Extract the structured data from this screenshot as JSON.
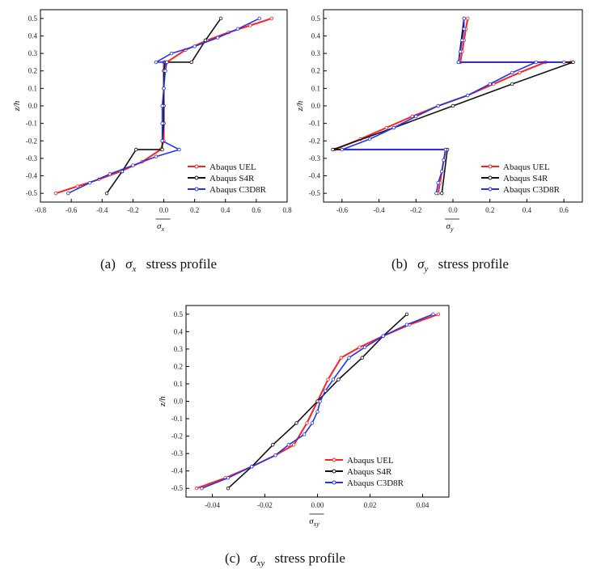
{
  "colors": {
    "uel": "#ff2020",
    "s4r": "#111111",
    "c3d8r": "#2233ee"
  },
  "chart_data": [
    {
      "id": "a",
      "type": "line",
      "ylabel": "z/h",
      "xlabel_symbol": "σ",
      "xlabel_sub": "x",
      "xlim": [
        -0.8,
        0.8
      ],
      "ylim": [
        -0.55,
        0.55
      ],
      "xticks": [
        "-0.8",
        "-0.6",
        "-0.4",
        "-0.2",
        "0.0",
        "0.2",
        "0.4",
        "0.6",
        "0.8"
      ],
      "xtick_values": [
        -0.8,
        -0.6,
        -0.4,
        -0.2,
        0.0,
        0.2,
        0.4,
        0.6,
        0.8
      ],
      "yticks": [
        "0.5",
        "0.4",
        "0.3",
        "0.2",
        "0.1",
        "0.0",
        "-0.1",
        "-0.2",
        "-0.3",
        "-0.4",
        "-0.5"
      ],
      "ytick_values": [
        0.5,
        0.4,
        0.3,
        0.2,
        0.1,
        0.0,
        -0.1,
        -0.2,
        -0.3,
        -0.4,
        -0.5
      ],
      "legend": [
        "Abaqus UEL",
        "Abaqus S4R",
        "Abaqus C3D8R"
      ],
      "legend_position": "bottom-right",
      "series": [
        {
          "name": "Abaqus UEL",
          "color": "uel",
          "x": [
            -0.7,
            -0.56,
            -0.42,
            -0.28,
            -0.14,
            -0.02,
            0.0,
            0.0,
            0.0,
            0.0,
            0.0,
            0.0,
            0.0,
            0.02,
            0.14,
            0.28,
            0.42,
            0.56,
            0.7
          ],
          "y": [
            -0.5,
            -0.46,
            -0.42,
            -0.375,
            -0.32,
            -0.25,
            -0.2,
            -0.1,
            0.0,
            0.1,
            0.2,
            0.25,
            0.25,
            0.25,
            0.32,
            0.375,
            0.42,
            0.46,
            0.5
          ]
        },
        {
          "name": "Abaqus S4R",
          "color": "s4r",
          "x": [
            -0.37,
            -0.27,
            -0.18,
            -0.01,
            -0.01,
            0.0,
            0.0,
            0.0,
            0.0,
            0.01,
            0.18,
            0.27,
            0.37
          ],
          "y": [
            -0.5,
            -0.375,
            -0.25,
            -0.25,
            -0.2,
            -0.1,
            0.0,
            0.1,
            0.2,
            0.25,
            0.25,
            0.375,
            0.5
          ]
        },
        {
          "name": "Abaqus C3D8R",
          "color": "c3d8r",
          "x": [
            -0.62,
            -0.48,
            -0.35,
            -0.2,
            -0.05,
            0.1,
            -0.01,
            -0.01,
            -0.01,
            0.0,
            0.01,
            0.02,
            -0.05,
            0.05,
            0.2,
            0.35,
            0.48,
            0.62
          ],
          "y": [
            -0.5,
            -0.44,
            -0.39,
            -0.34,
            -0.29,
            -0.25,
            -0.2,
            -0.1,
            0.0,
            0.1,
            0.2,
            0.25,
            0.25,
            0.3,
            0.34,
            0.39,
            0.44,
            0.5
          ]
        }
      ]
    },
    {
      "id": "b",
      "type": "line",
      "ylabel": "z/h",
      "xlabel_symbol": "σ",
      "xlabel_sub": "y",
      "xlim": [
        -0.7,
        0.7
      ],
      "ylim": [
        -0.55,
        0.55
      ],
      "xticks": [
        "-0.6",
        "-0.4",
        "-0.2",
        "0.0",
        "0.2",
        "0.4",
        "0.6"
      ],
      "xtick_values": [
        -0.6,
        -0.4,
        -0.2,
        0.0,
        0.2,
        0.4,
        0.6
      ],
      "yticks": [
        "0.5",
        "0.4",
        "0.3",
        "0.2",
        "0.1",
        "0.0",
        "-0.1",
        "-0.2",
        "-0.3",
        "-0.4",
        "-0.5"
      ],
      "ytick_values": [
        0.5,
        0.4,
        0.3,
        0.2,
        0.1,
        0.0,
        -0.1,
        -0.2,
        -0.3,
        -0.4,
        -0.5
      ],
      "legend": [
        "Abaqus UEL",
        "Abaqus S4R",
        "Abaqus C3D8R"
      ],
      "legend_position": "bottom-right",
      "series": [
        {
          "name": "Abaqus UEL",
          "color": "uel",
          "x": [
            -0.08,
            -0.07,
            -0.06,
            -0.05,
            -0.04,
            -0.64,
            -0.5,
            -0.36,
            -0.22,
            -0.08,
            0.08,
            0.22,
            0.36,
            0.5,
            0.64,
            0.04,
            0.05,
            0.06,
            0.07,
            0.08
          ],
          "y": [
            -0.5,
            -0.44,
            -0.375,
            -0.31,
            -0.25,
            -0.25,
            -0.19,
            -0.125,
            -0.06,
            0.0,
            0.06,
            0.125,
            0.19,
            0.25,
            0.25,
            0.25,
            0.31,
            0.375,
            0.44,
            0.5
          ]
        },
        {
          "name": "Abaqus S4R",
          "color": "s4r",
          "x": [
            -0.06,
            -0.03,
            -0.65,
            -0.32,
            0.0,
            0.32,
            0.65,
            0.03,
            0.06
          ],
          "y": [
            -0.5,
            -0.25,
            -0.25,
            -0.125,
            0.0,
            0.125,
            0.25,
            0.25,
            0.5
          ]
        },
        {
          "name": "Abaqus C3D8R",
          "color": "c3d8r",
          "x": [
            -0.09,
            -0.08,
            -0.06,
            -0.05,
            -0.04,
            -0.6,
            -0.45,
            -0.32,
            -0.2,
            -0.08,
            0.08,
            0.2,
            0.32,
            0.45,
            0.6,
            0.03,
            0.04,
            0.05,
            0.06,
            0.06
          ],
          "y": [
            -0.5,
            -0.44,
            -0.375,
            -0.31,
            -0.25,
            -0.25,
            -0.19,
            -0.125,
            -0.06,
            0.0,
            0.06,
            0.125,
            0.19,
            0.25,
            0.25,
            0.25,
            0.31,
            0.375,
            0.44,
            0.5
          ]
        }
      ]
    },
    {
      "id": "c",
      "type": "line",
      "ylabel": "z/h",
      "xlabel_symbol": "σ",
      "xlabel_sub": "xy",
      "xlim": [
        -0.05,
        0.05
      ],
      "ylim": [
        -0.55,
        0.55
      ],
      "xticks": [
        "-0.04",
        "-0.02",
        "0.00",
        "0.02",
        "0.04"
      ],
      "xtick_values": [
        -0.04,
        -0.02,
        0.0,
        0.02,
        0.04
      ],
      "yticks": [
        "0.5",
        "0.4",
        "0.3",
        "0.2",
        "0.1",
        "0.0",
        "-0.1",
        "-0.2",
        "-0.3",
        "-0.4",
        "-0.5"
      ],
      "ytick_values": [
        0.5,
        0.4,
        0.3,
        0.2,
        0.1,
        0.0,
        -0.1,
        -0.2,
        -0.3,
        -0.4,
        -0.5
      ],
      "legend": [
        "Abaqus UEL",
        "Abaqus S4R",
        "Abaqus C3D8R"
      ],
      "legend_position": "bottom-right",
      "series": [
        {
          "name": "Abaqus UEL",
          "color": "uel",
          "x": [
            -0.046,
            -0.035,
            -0.025,
            -0.016,
            -0.009,
            -0.004,
            0.0,
            0.004,
            0.009,
            0.016,
            0.025,
            0.035,
            0.046
          ],
          "y": [
            -0.5,
            -0.44,
            -0.375,
            -0.31,
            -0.25,
            -0.125,
            0.0,
            0.125,
            0.25,
            0.31,
            0.375,
            0.44,
            0.5
          ]
        },
        {
          "name": "Abaqus S4R",
          "color": "s4r",
          "x": [
            -0.034,
            -0.025,
            -0.017,
            -0.008,
            0.0,
            0.008,
            0.017,
            0.025,
            0.034
          ],
          "y": [
            -0.5,
            -0.375,
            -0.25,
            -0.125,
            0.0,
            0.125,
            0.25,
            0.375,
            0.5
          ]
        },
        {
          "name": "Abaqus C3D8R",
          "color": "c3d8r",
          "x": [
            -0.044,
            -0.034,
            -0.025,
            -0.016,
            -0.011,
            -0.005,
            -0.002,
            0.0,
            0.001,
            0.003,
            0.006,
            0.012,
            0.018,
            0.025,
            0.034,
            0.044
          ],
          "y": [
            -0.5,
            -0.44,
            -0.375,
            -0.31,
            -0.25,
            -0.19,
            -0.125,
            -0.06,
            0.0,
            0.06,
            0.125,
            0.25,
            0.31,
            0.375,
            0.44,
            0.5
          ]
        }
      ]
    }
  ],
  "captions": [
    {
      "label": "(a)",
      "symbol": "σ",
      "sub": "x",
      "text": "stress profile"
    },
    {
      "label": "(b)",
      "symbol": "σ",
      "sub": "y",
      "text": "stress profile"
    },
    {
      "label": "(c)",
      "symbol": "σ",
      "sub": "xy",
      "text": "stress profile"
    }
  ]
}
